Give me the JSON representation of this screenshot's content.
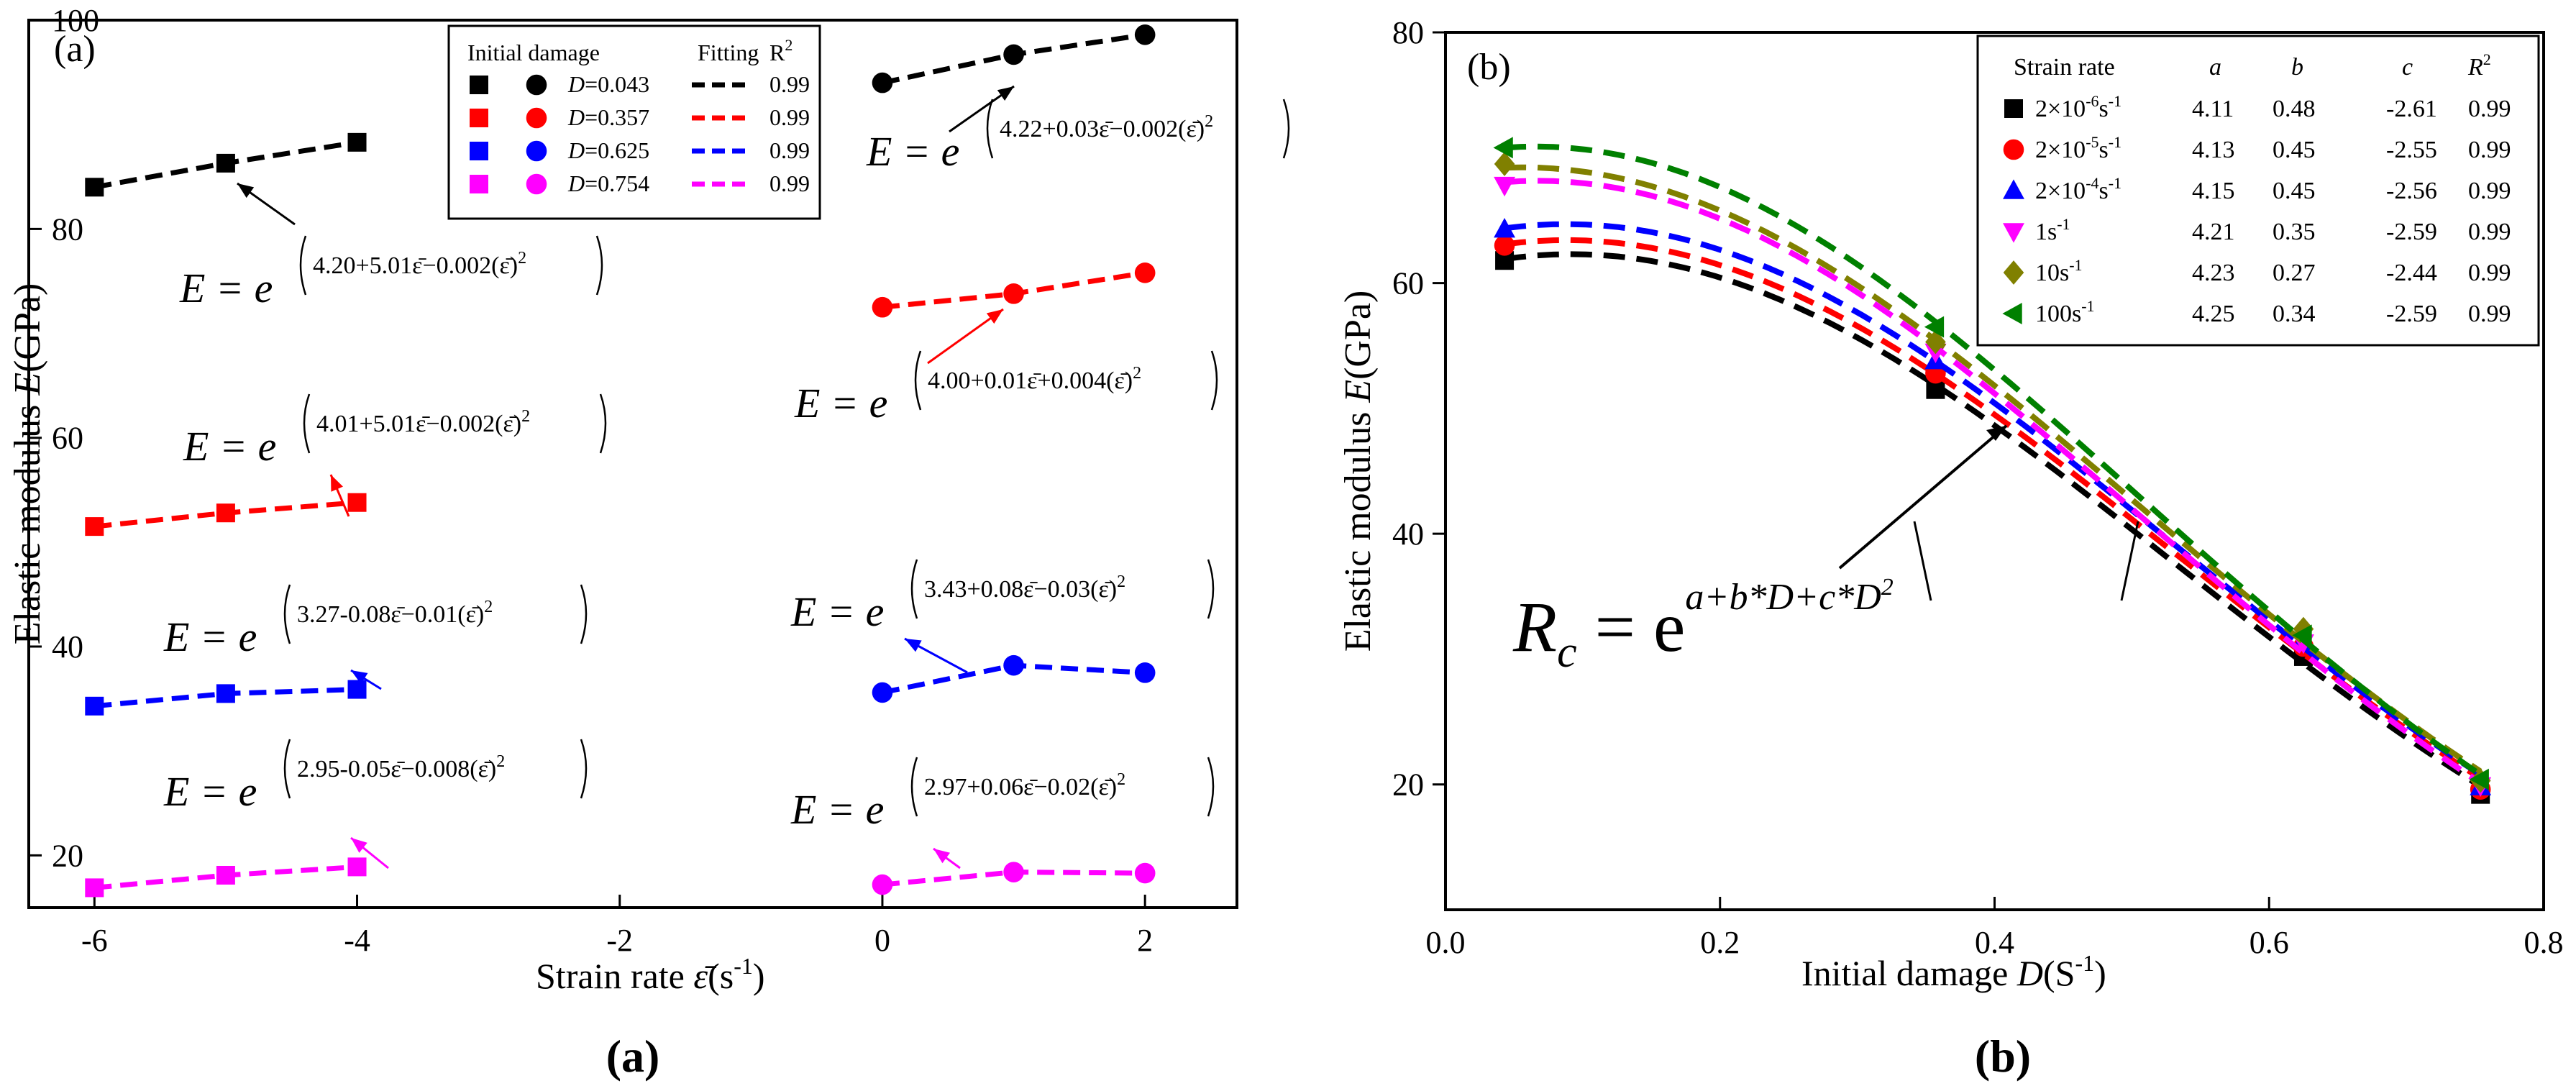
{
  "chart_data": [
    {
      "panel": "a",
      "type": "scatter",
      "panel_tag": "(a)",
      "caption": "(a)",
      "xlabel_prefix": "Strain rate ",
      "xlabel_var": "ε̄",
      "xlabel_unit": "(s",
      "xlabel_unit_sup": "-1",
      "xlabel_close": ")",
      "ylabel_prefix": "Elastic modulus ",
      "ylabel_var": "E",
      "ylabel_unit": "(GPa)",
      "xlim": [
        -6.5,
        2.7
      ],
      "ylim": [
        15,
        100
      ],
      "xticks": [
        -6,
        -4,
        -2,
        0,
        2
      ],
      "xtick_labels": [
        "-6",
        "-4",
        "-2",
        "0",
        "2"
      ],
      "yticks": [
        20,
        40,
        60,
        80,
        100
      ],
      "ytick_labels": [
        "20",
        "40",
        "60",
        "80",
        "100"
      ],
      "legend_headers": [
        "Initial damage",
        "Fitting",
        "R"
      ],
      "legend_header_sup": "2",
      "legend_position": "top-center",
      "series": [
        {
          "name": "D=0.043",
          "label_var": "D",
          "label_val": "=0.043",
          "color": "#000000",
          "r2": "0.99",
          "x_left": [
            -6,
            -5,
            -4
          ],
          "y_left": [
            84,
            86.3,
            88.3
          ],
          "x_right": [
            0,
            1,
            2
          ],
          "y_right": [
            94,
            96.7,
            98.6
          ],
          "eq_left": "4.20+5.01ε̄−0.002(ε̄)",
          "eq_right": "4.22+0.03ε̄−0.002(ε̄)"
        },
        {
          "name": "D=0.357",
          "label_var": "D",
          "label_val": "=0.357",
          "color": "#ff0000",
          "r2": "0.99",
          "x_left": [
            -6,
            -5,
            -4
          ],
          "y_left": [
            51.5,
            52.8,
            53.8
          ],
          "x_right": [
            0,
            1,
            2
          ],
          "y_right": [
            72.5,
            73.8,
            75.8
          ],
          "eq_left": "4.01+5.01ε̄−0.002(ε̄)",
          "eq_right": "4.00+0.01ε̄+0.004(ε̄)"
        },
        {
          "name": "D=0.625",
          "label_var": "D",
          "label_val": "=0.625",
          "color": "#0000ff",
          "r2": "0.99",
          "x_left": [
            -6,
            -5,
            -4
          ],
          "y_left": [
            34.3,
            35.5,
            35.9
          ],
          "x_right": [
            0,
            1,
            2
          ],
          "y_right": [
            35.6,
            38.2,
            37.5
          ],
          "eq_left": "3.27-0.08ε̄−0.01(ε̄)",
          "eq_right": "3.43+0.08ε̄−0.03(ε̄)"
        },
        {
          "name": "D=0.754",
          "label_var": "D",
          "label_val": "=0.754",
          "color": "#ff00ff",
          "r2": "0.99",
          "x_left": [
            -6,
            -5,
            -4
          ],
          "y_left": [
            16.9,
            18.1,
            18.9
          ],
          "x_right": [
            0,
            1,
            2
          ],
          "y_right": [
            17.2,
            18.4,
            18.3
          ],
          "eq_left": "2.95-0.05ε̄−0.008(ε̄)",
          "eq_right": "2.97+0.06ε̄−0.02(ε̄)"
        }
      ],
      "eq_prefix": "E = e",
      "eq_sup2": "2"
    },
    {
      "panel": "b",
      "type": "scatter",
      "panel_tag": "(b)",
      "caption": "(b)",
      "xlabel_prefix": "Initial damage ",
      "xlabel_var": "D",
      "xlabel_unit": "(S",
      "xlabel_unit_sup": "-1",
      "xlabel_close": ")",
      "ylabel_prefix": "Elastic modulus ",
      "ylabel_var": "E",
      "ylabel_unit": "(GPa)",
      "xlim": [
        0.0,
        0.8
      ],
      "ylim": [
        10,
        80
      ],
      "xticks": [
        0.0,
        0.2,
        0.4,
        0.6,
        0.8
      ],
      "xtick_labels": [
        "0.0",
        "0.2",
        "0.4",
        "0.6",
        "0.8"
      ],
      "yticks": [
        20,
        40,
        60,
        80
      ],
      "ytick_labels": [
        "20",
        "40",
        "60",
        "80"
      ],
      "x": [
        0.043,
        0.357,
        0.625,
        0.754
      ],
      "legend_headers": [
        "Strain rate",
        "a",
        "b",
        "c",
        "R"
      ],
      "legend_header_sup": "2",
      "legend_position": "top-right",
      "series": [
        {
          "name": "2×10⁻⁶s⁻¹",
          "lbl_base": "2×10",
          "lbl_exp": "-6",
          "lbl_unit": "s",
          "lbl_unit_exp": "-1",
          "marker": "square",
          "color": "#000000",
          "a": "4.11",
          "b": "0.48",
          "c": "-2.61",
          "r2": "0.99",
          "values": [
            61.8,
            51.5,
            30.2,
            19.2
          ]
        },
        {
          "name": "2×10⁻⁵s⁻¹",
          "lbl_base": "2×10",
          "lbl_exp": "-5",
          "lbl_unit": "s",
          "lbl_unit_exp": "-1",
          "marker": "circle",
          "color": "#ff0000",
          "a": "4.13",
          "b": "0.45",
          "c": "-2.55",
          "r2": "0.99",
          "values": [
            63.0,
            52.8,
            31.0,
            19.6
          ]
        },
        {
          "name": "2×10⁻⁴s⁻¹",
          "lbl_base": "2×10",
          "lbl_exp": "-4",
          "lbl_unit": "s",
          "lbl_unit_exp": "-1",
          "marker": "triangle-up",
          "color": "#0000ff",
          "a": "4.15",
          "b": "0.45",
          "c": "-2.56",
          "r2": "0.99",
          "values": [
            64.3,
            53.8,
            31.5,
            19.8
          ]
        },
        {
          "name": "1s⁻¹",
          "lbl_base": "1",
          "lbl_exp": "",
          "lbl_unit": "s",
          "lbl_unit_exp": "-1",
          "marker": "triangle-down",
          "color": "#ff00ff",
          "a": "4.21",
          "b": "0.35",
          "c": "-2.59",
          "r2": "0.99",
          "values": [
            67.8,
            54.5,
            31.3,
            19.9
          ]
        },
        {
          "name": "10s⁻¹",
          "lbl_base": "10",
          "lbl_exp": "",
          "lbl_unit": "s",
          "lbl_unit_exp": "-1",
          "marker": "diamond",
          "color": "#808000",
          "a": "4.23",
          "b": "0.27",
          "c": "-2.44",
          "r2": "0.99",
          "values": [
            69.5,
            55.3,
            32.4,
            20.3
          ]
        },
        {
          "name": "100s⁻¹",
          "lbl_base": "100",
          "lbl_exp": "",
          "lbl_unit": "s",
          "lbl_unit_exp": "-1",
          "marker": "triangle-left",
          "color": "#008000",
          "a": "4.25",
          "b": "0.34",
          "c": "-2.59",
          "r2": "0.99",
          "values": [
            70.8,
            56.5,
            31.9,
            20.4
          ]
        }
      ],
      "eq_base": "R",
      "eq_sub": "c",
      "eq_mid": " = e",
      "eq_exp": "a+b*D+c*D",
      "eq_exp_sup": "2"
    }
  ]
}
